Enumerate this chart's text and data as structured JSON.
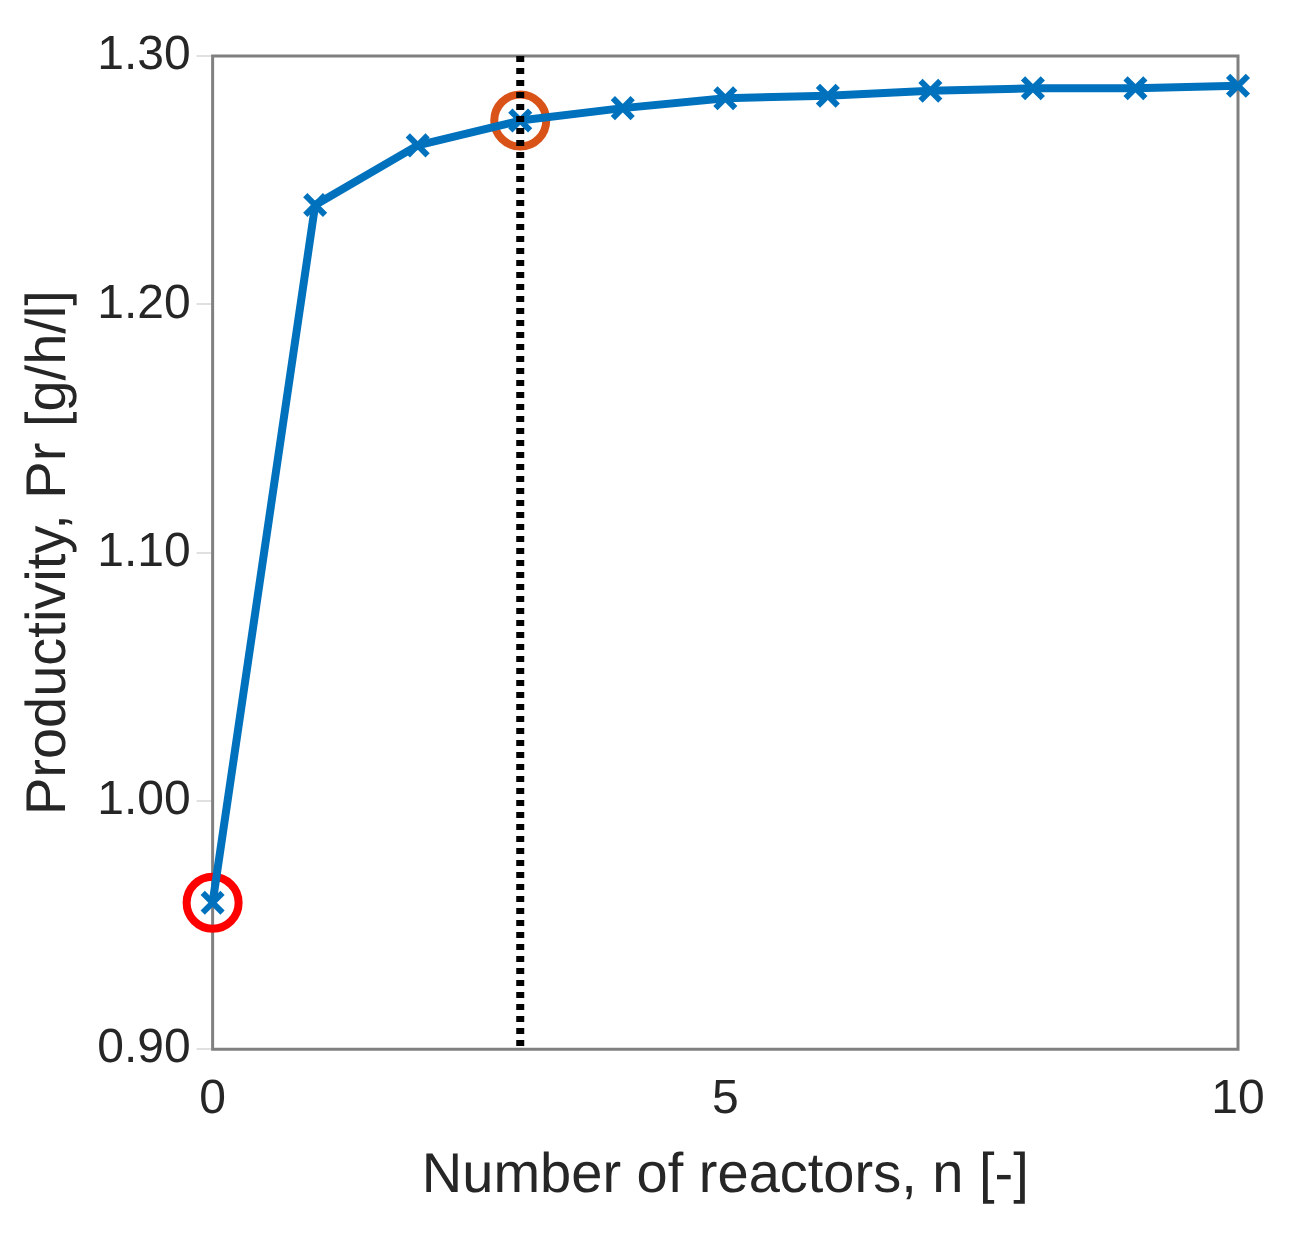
{
  "chart_data": {
    "type": "line",
    "xlabel": "Number of reactors, n [-]",
    "ylabel": "Productivity, Pr [g/h/l]",
    "x": [
      0,
      1,
      2,
      3,
      4,
      5,
      6,
      7,
      8,
      9,
      10
    ],
    "series": [
      {
        "color": "#0072bd",
        "marker": "cross",
        "line_style": "solid",
        "values": [
          0.959,
          1.24,
          1.264,
          1.274,
          1.279,
          1.283,
          1.284,
          1.286,
          1.287,
          1.287,
          1.288
        ]
      },
      {
        "type": "scatter",
        "color": "#ff0000",
        "marker": "circle",
        "x": [
          0
        ],
        "values": [
          0.959
        ]
      },
      {
        "type": "scatter",
        "color": "#d95319",
        "marker": "circle",
        "x": [
          3
        ],
        "values": [
          1.274
        ]
      }
    ],
    "xlim": [
      0,
      10
    ],
    "xticks": [
      0,
      5,
      10
    ],
    "ylim": [
      0.9,
      1.3
    ],
    "yticks": [
      {
        "value": 0.9,
        "label": "0.90"
      },
      {
        "value": 1.0,
        "label": "1.00"
      },
      {
        "value": 1.1,
        "label": "1.10"
      },
      {
        "value": 1.2,
        "label": "1.20"
      },
      {
        "value": 1.3,
        "label": "1.30"
      }
    ],
    "ref_lines": [
      {
        "axis": "x",
        "value": 3,
        "color": "#000000",
        "line_style": "dotted"
      }
    ],
    "grid": false,
    "legend": false
  }
}
